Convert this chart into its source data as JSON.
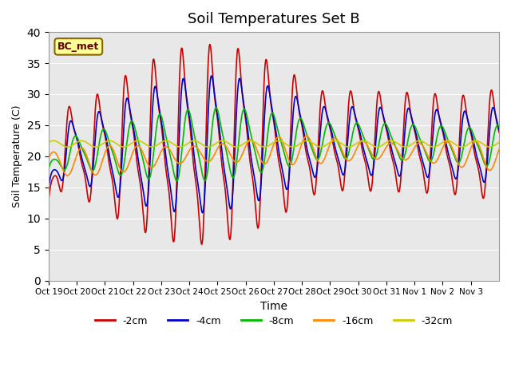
{
  "title": "Soil Temperatures Set B",
  "xlabel": "Time",
  "ylabel": "Soil Temperature (C)",
  "ylim": [
    0,
    40
  ],
  "yticks": [
    0,
    5,
    10,
    15,
    20,
    25,
    30,
    35,
    40
  ],
  "annotation_text": "BC_met",
  "colors": {
    "-2cm": "#cc0000",
    "-4cm": "#0000cc",
    "-8cm": "#00bb00",
    "-16cm": "#ff8800",
    "-32cm": "#cccc00"
  },
  "legend_labels": [
    "-2cm",
    "-4cm",
    "-8cm",
    "-16cm",
    "-32cm"
  ],
  "x_tick_labels": [
    "Oct 19",
    "Oct 20",
    "Oct 21",
    "Oct 22",
    "Oct 23",
    "Oct 24",
    "Oct 25",
    "Oct 26",
    "Oct 27",
    "Oct 28",
    "Oct 29",
    "Oct 30",
    "Oct 31",
    "Nov 1",
    "Nov 2",
    "Nov 3"
  ],
  "plot_bg_color": "#e8e8e8",
  "linewidth": 1.2
}
